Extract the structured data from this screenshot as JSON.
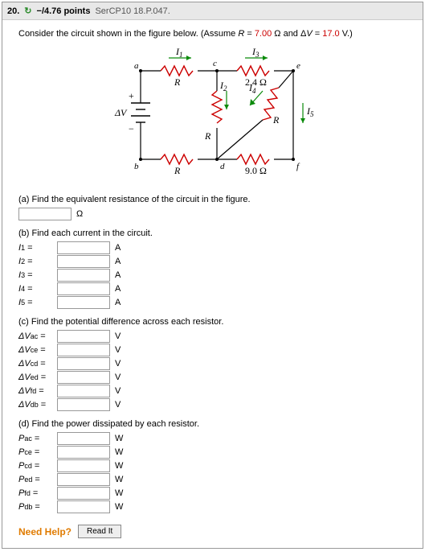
{
  "header": {
    "qnum": "20.",
    "arrow": "↻",
    "points": "−/4.76 points",
    "ref": "SerCP10 18.P.047."
  },
  "prompt": {
    "lead": "Consider the circuit shown in the figure below. (Assume ",
    "Rlabel": "R",
    "eq1": " = ",
    "Rval": "7.00",
    "ohm": " Ω  and  Δ",
    "Vlabel": "V",
    "eq2": " = ",
    "Vval": "17.0",
    "vunit": " V.)"
  },
  "figure": {
    "labels": {
      "I1": "I",
      "I1s": "1",
      "I2": "I",
      "I2s": "2",
      "I3": "I",
      "I3s": "3",
      "I4": "I",
      "I4s": "4",
      "I5": "I",
      "I5s": "5",
      "dV": "ΔV",
      "R": "R",
      "R24": "2.4 Ω",
      "R90": "9.0 Ω",
      "plus": "+",
      "minus": "−",
      "a": "a",
      "b": "b",
      "c": "c",
      "d": "d",
      "e": "e",
      "f": "f"
    }
  },
  "partA": {
    "q": "(a) Find the equivalent resistance of the circuit in the figure.",
    "unit": "Ω"
  },
  "partB": {
    "q": "(b) Find each current in the circuit.",
    "rows": [
      {
        "sym": "I",
        "sub": "1",
        "unit": "A"
      },
      {
        "sym": "I",
        "sub": "2",
        "unit": "A"
      },
      {
        "sym": "I",
        "sub": "3",
        "unit": "A"
      },
      {
        "sym": "I",
        "sub": "4",
        "unit": "A"
      },
      {
        "sym": "I",
        "sub": "5",
        "unit": "A"
      }
    ]
  },
  "partC": {
    "q": "(c) Find the potential difference across each resistor.",
    "rows": [
      {
        "sym": "ΔV",
        "sub": "ac",
        "unit": "V"
      },
      {
        "sym": "ΔV",
        "sub": "ce",
        "unit": "V"
      },
      {
        "sym": "ΔV",
        "sub": "cd",
        "unit": "V"
      },
      {
        "sym": "ΔV",
        "sub": "ed",
        "unit": "V"
      },
      {
        "sym": "ΔV",
        "sub": "fd",
        "unit": "V"
      },
      {
        "sym": "ΔV",
        "sub": "db",
        "unit": "V"
      }
    ]
  },
  "partD": {
    "q": "(d) Find the power dissipated by each resistor.",
    "rows": [
      {
        "sym": "P",
        "sub": "ac",
        "unit": "W"
      },
      {
        "sym": "P",
        "sub": "ce",
        "unit": "W"
      },
      {
        "sym": "P",
        "sub": "cd",
        "unit": "W"
      },
      {
        "sym": "P",
        "sub": "ed",
        "unit": "W"
      },
      {
        "sym": "P",
        "sub": "fd",
        "unit": "W"
      },
      {
        "sym": "P",
        "sub": "db",
        "unit": "W"
      }
    ]
  },
  "help": {
    "label": "Need Help?",
    "readit": "Read It"
  }
}
